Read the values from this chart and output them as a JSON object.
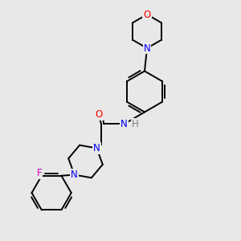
{
  "bg_color": "#e8e8e8",
  "atom_colors": {
    "C": "#000000",
    "N": "#0000ff",
    "O": "#ff0000",
    "F": "#cc00cc",
    "H": "#7f7f7f"
  },
  "bond_color": "#000000",
  "bond_width": 1.4,
  "figsize": [
    3.0,
    3.0
  ],
  "dpi": 100
}
